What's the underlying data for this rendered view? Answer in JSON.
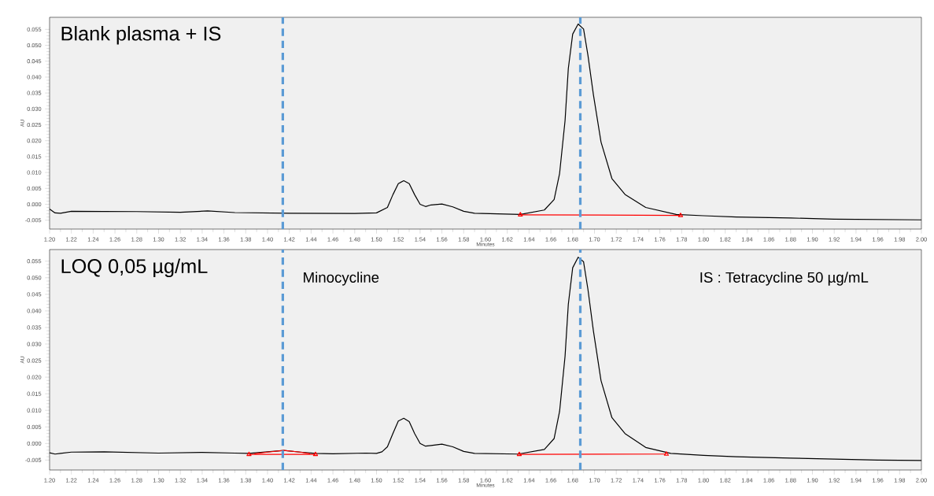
{
  "chart_data": [
    {
      "type": "line",
      "title": "Blank plasma + IS",
      "xlabel": "Minutes",
      "ylabel": "AU",
      "xlim": [
        1.2,
        2.0
      ],
      "ylim": [
        -0.0078,
        0.0588
      ],
      "grid": false,
      "xticks": [
        {
          "value": 1.2,
          "label": "1.20"
        },
        {
          "value": 1.22,
          "label": "1.22"
        },
        {
          "value": 1.24,
          "label": "1.24"
        },
        {
          "value": 1.26,
          "label": "1.26"
        },
        {
          "value": 1.28,
          "label": "1.28"
        },
        {
          "value": 1.3,
          "label": "1.30"
        },
        {
          "value": 1.32,
          "label": "1.32"
        },
        {
          "value": 1.34,
          "label": "1.34"
        },
        {
          "value": 1.36,
          "label": "1.36"
        },
        {
          "value": 1.38,
          "label": "1.38"
        },
        {
          "value": 1.4,
          "label": "1.40"
        },
        {
          "value": 1.42,
          "label": "1.42"
        },
        {
          "value": 1.44,
          "label": "1.44"
        },
        {
          "value": 1.46,
          "label": "1.46"
        },
        {
          "value": 1.48,
          "label": "1.48"
        },
        {
          "value": 1.5,
          "label": "1.50"
        },
        {
          "value": 1.52,
          "label": "1.52"
        },
        {
          "value": 1.54,
          "label": "1.54"
        },
        {
          "value": 1.56,
          "label": "1.56"
        },
        {
          "value": 1.58,
          "label": "1.58"
        },
        {
          "value": 1.6,
          "label": "1.60"
        },
        {
          "value": 1.62,
          "label": "1.62"
        },
        {
          "value": 1.64,
          "label": "1.64"
        },
        {
          "value": 1.66,
          "label": "1.66"
        },
        {
          "value": 1.68,
          "label": "1.68"
        },
        {
          "value": 1.7,
          "label": "1.70"
        },
        {
          "value": 1.72,
          "label": "1.72"
        },
        {
          "value": 1.74,
          "label": "1.74"
        },
        {
          "value": 1.76,
          "label": "1.76"
        },
        {
          "value": 1.78,
          "label": "1.78"
        },
        {
          "value": 1.8,
          "label": "1.80"
        },
        {
          "value": 1.82,
          "label": "1.82"
        },
        {
          "value": 1.84,
          "label": "1.84"
        },
        {
          "value": 1.86,
          "label": "1.86"
        },
        {
          "value": 1.88,
          "label": "1.88"
        },
        {
          "value": 1.9,
          "label": "1.90"
        },
        {
          "value": 1.92,
          "label": "1.92"
        },
        {
          "value": 1.94,
          "label": "1.94"
        },
        {
          "value": 1.96,
          "label": "1.96"
        },
        {
          "value": 1.98,
          "label": "1.98"
        },
        {
          "value": 2.0,
          "label": "2.00"
        }
      ],
      "yticks": [
        {
          "value": -0.005,
          "label": "-0.005"
        },
        {
          "value": 0,
          "label": "0.000"
        },
        {
          "value": 0.005,
          "label": "0.005"
        },
        {
          "value": 0.01,
          "label": "0.010"
        },
        {
          "value": 0.015,
          "label": "0.015"
        },
        {
          "value": 0.02,
          "label": "0.020"
        },
        {
          "value": 0.025,
          "label": "0.025"
        },
        {
          "value": 0.03,
          "label": "0.030"
        },
        {
          "value": 0.035,
          "label": "0.035"
        },
        {
          "value": 0.04,
          "label": "0.040"
        },
        {
          "value": 0.045,
          "label": "0.045"
        },
        {
          "value": 0.05,
          "label": "0.050"
        },
        {
          "value": 0.055,
          "label": "0.055"
        }
      ],
      "ref_lines": [
        {
          "axis": "x",
          "value": 1.414,
          "color": "#5b9bd5",
          "line_style": "dashed"
        },
        {
          "axis": "x",
          "value": 1.687,
          "color": "#5b9bd5",
          "line_style": "dashed"
        }
      ],
      "series": [
        {
          "color": "#000000",
          "marker": "none",
          "x": [
            1.2,
            1.205,
            1.21,
            1.22,
            1.28,
            1.32,
            1.345,
            1.37,
            1.42,
            1.48,
            1.5,
            1.51,
            1.515,
            1.52,
            1.525,
            1.53,
            1.535,
            1.54,
            1.545,
            1.55,
            1.56,
            1.57,
            1.58,
            1.59,
            1.632,
            1.654,
            1.663,
            1.668,
            1.673,
            1.676,
            1.68,
            1.685,
            1.69,
            1.694,
            1.699,
            1.706,
            1.716,
            1.728,
            1.747,
            1.775,
            1.8,
            1.83,
            1.88,
            1.92,
            2.0
          ],
          "values": [
            -0.0015,
            -0.0027,
            -0.0028,
            -0.0022,
            -0.0023,
            -0.0025,
            -0.0021,
            -0.0026,
            -0.0028,
            -0.0029,
            -0.0027,
            -0.001,
            0.003,
            0.0065,
            0.0074,
            0.0065,
            0.003,
            0.0,
            -0.0007,
            -0.0002,
            0.0001,
            -0.0008,
            -0.0022,
            -0.0028,
            -0.0032,
            -0.0018,
            0.0015,
            0.0097,
            0.0263,
            0.0427,
            0.0535,
            0.0567,
            0.0551,
            0.0469,
            0.0345,
            0.0196,
            0.0081,
            0.0031,
            -0.001,
            -0.0032,
            -0.0036,
            -0.004,
            -0.0043,
            -0.0047,
            -0.0049
          ]
        },
        {
          "color": "#ff0000",
          "marker": "triangle",
          "x": [
            1.632,
            1.779
          ],
          "values": [
            -0.0033,
            -0.0035
          ]
        }
      ]
    },
    {
      "type": "line",
      "title": "LOQ 0,05 µg/mL",
      "xlabel": "Minutes",
      "ylabel": "AU",
      "annotations": [
        "Minocycline",
        "IS : Tetracycline 50 µg/mL"
      ],
      "xlim": [
        1.2,
        2.0
      ],
      "ylim": [
        -0.008,
        0.0585
      ],
      "grid": false,
      "xticks": [
        {
          "value": 1.2,
          "label": "1.20"
        },
        {
          "value": 1.22,
          "label": "1.22"
        },
        {
          "value": 1.24,
          "label": "1.24"
        },
        {
          "value": 1.26,
          "label": "1.26"
        },
        {
          "value": 1.28,
          "label": "1.28"
        },
        {
          "value": 1.3,
          "label": "1.30"
        },
        {
          "value": 1.32,
          "label": "1.32"
        },
        {
          "value": 1.34,
          "label": "1.34"
        },
        {
          "value": 1.36,
          "label": "1.36"
        },
        {
          "value": 1.38,
          "label": "1.38"
        },
        {
          "value": 1.4,
          "label": "1.40"
        },
        {
          "value": 1.42,
          "label": "1.42"
        },
        {
          "value": 1.44,
          "label": "1.44"
        },
        {
          "value": 1.46,
          "label": "1.46"
        },
        {
          "value": 1.48,
          "label": "1.48"
        },
        {
          "value": 1.5,
          "label": "1.50"
        },
        {
          "value": 1.52,
          "label": "1.52"
        },
        {
          "value": 1.54,
          "label": "1.54"
        },
        {
          "value": 1.56,
          "label": "1.56"
        },
        {
          "value": 1.58,
          "label": "1.58"
        },
        {
          "value": 1.6,
          "label": "1.60"
        },
        {
          "value": 1.62,
          "label": "1.62"
        },
        {
          "value": 1.64,
          "label": "1.64"
        },
        {
          "value": 1.66,
          "label": "1.66"
        },
        {
          "value": 1.68,
          "label": "1.68"
        },
        {
          "value": 1.7,
          "label": "1.70"
        },
        {
          "value": 1.72,
          "label": "1.72"
        },
        {
          "value": 1.74,
          "label": "1.74"
        },
        {
          "value": 1.76,
          "label": "1.76"
        },
        {
          "value": 1.78,
          "label": "1.78"
        },
        {
          "value": 1.8,
          "label": "1.80"
        },
        {
          "value": 1.82,
          "label": "1.82"
        },
        {
          "value": 1.84,
          "label": "1.84"
        },
        {
          "value": 1.86,
          "label": "1.86"
        },
        {
          "value": 1.88,
          "label": "1.88"
        },
        {
          "value": 1.9,
          "label": "1.90"
        },
        {
          "value": 1.92,
          "label": "1.92"
        },
        {
          "value": 1.94,
          "label": "1.94"
        },
        {
          "value": 1.96,
          "label": "1.96"
        },
        {
          "value": 1.98,
          "label": "1.98"
        },
        {
          "value": 2.0,
          "label": "2.00"
        }
      ],
      "yticks": [
        {
          "value": -0.005,
          "label": "-0.005"
        },
        {
          "value": 0,
          "label": "0.000"
        },
        {
          "value": 0.005,
          "label": "0.005"
        },
        {
          "value": 0.01,
          "label": "0.010"
        },
        {
          "value": 0.015,
          "label": "0.015"
        },
        {
          "value": 0.02,
          "label": "0.020"
        },
        {
          "value": 0.025,
          "label": "0.025"
        },
        {
          "value": 0.03,
          "label": "0.030"
        },
        {
          "value": 0.035,
          "label": "0.035"
        },
        {
          "value": 0.04,
          "label": "0.040"
        },
        {
          "value": 0.045,
          "label": "0.045"
        },
        {
          "value": 0.05,
          "label": "0.050"
        },
        {
          "value": 0.055,
          "label": "0.055"
        }
      ],
      "ref_lines": [
        {
          "axis": "x",
          "value": 1.414,
          "color": "#5b9bd5",
          "line_style": "dashed"
        },
        {
          "axis": "x",
          "value": 1.687,
          "color": "#5b9bd5",
          "line_style": "dashed"
        }
      ],
      "series": [
        {
          "color": "#000000",
          "marker": "none",
          "x": [
            1.2,
            1.205,
            1.21,
            1.22,
            1.25,
            1.3,
            1.34,
            1.37,
            1.383,
            1.4,
            1.415,
            1.43,
            1.444,
            1.46,
            1.49,
            1.5,
            1.505,
            1.51,
            1.515,
            1.52,
            1.525,
            1.53,
            1.535,
            1.54,
            1.545,
            1.55,
            1.56,
            1.57,
            1.58,
            1.59,
            1.63,
            1.654,
            1.663,
            1.668,
            1.673,
            1.676,
            1.68,
            1.685,
            1.69,
            1.694,
            1.699,
            1.706,
            1.716,
            1.728,
            1.747,
            1.77,
            1.8,
            1.83,
            1.88,
            1.92,
            1.96,
            2.0
          ],
          "values": [
            -0.0028,
            -0.0032,
            -0.003,
            -0.0026,
            -0.0025,
            -0.0029,
            -0.0027,
            -0.0029,
            -0.003,
            -0.0025,
            -0.0021,
            -0.0026,
            -0.003,
            -0.0031,
            -0.0029,
            -0.003,
            -0.0025,
            -0.001,
            0.003,
            0.0068,
            0.0076,
            0.0066,
            0.003,
            0.0,
            -0.0008,
            -0.0006,
            -0.0002,
            -0.001,
            -0.0024,
            -0.003,
            -0.0032,
            -0.0018,
            0.0015,
            0.0097,
            0.0263,
            0.042,
            0.053,
            0.0562,
            0.0548,
            0.0465,
            0.034,
            0.019,
            0.0078,
            0.003,
            -0.0012,
            -0.003,
            -0.0036,
            -0.004,
            -0.0044,
            -0.0047,
            -0.005,
            -0.0051
          ]
        },
        {
          "color": "#ff0000",
          "marker": "none",
          "x": [
            1.388,
            1.4,
            1.415,
            1.43,
            1.439
          ],
          "values": [
            -0.0031,
            -0.0026,
            -0.0021,
            -0.0026,
            -0.0031
          ]
        },
        {
          "color": "#ff0000",
          "marker": "triangle",
          "x": [
            1.383,
            1.444
          ],
          "values": [
            -0.0033,
            -0.0033
          ]
        },
        {
          "color": "#ff0000",
          "marker": "triangle",
          "x": [
            1.631,
            1.766
          ],
          "values": [
            -0.0033,
            -0.0032
          ]
        }
      ]
    }
  ]
}
